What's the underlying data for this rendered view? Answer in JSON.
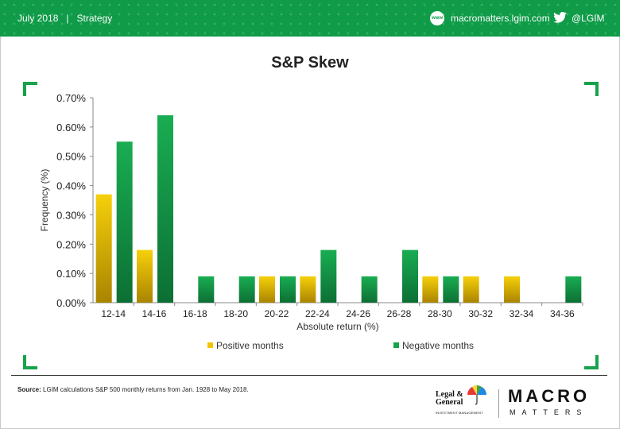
{
  "header": {
    "date": "July 2018",
    "separator": "|",
    "section": "Strategy",
    "web_icon_text": "www",
    "website": "macromatters.lgim.com",
    "twitter": "@LGIM"
  },
  "chart_data": {
    "type": "bar",
    "title": "S&P Skew",
    "xlabel": "Absolute return (%)",
    "ylabel": "Frequency (%)",
    "categories": [
      "12-14",
      "14-16",
      "16-18",
      "18-20",
      "20-22",
      "22-24",
      "24-26",
      "26-28",
      "28-30",
      "30-32",
      "32-34",
      "34-36"
    ],
    "series": [
      {
        "name": "Positive months",
        "color": "#f2c500",
        "values": [
          0.37,
          0.18,
          0,
          0,
          0.09,
          0.09,
          0,
          0,
          0.09,
          0.09,
          0.09,
          0
        ]
      },
      {
        "name": "Negative months",
        "color": "#16a34a",
        "values": [
          0.55,
          0.64,
          0.09,
          0.09,
          0.09,
          0.18,
          0.09,
          0.18,
          0.09,
          0,
          0,
          0.09
        ]
      }
    ],
    "ylim": [
      0,
      0.7
    ],
    "yticks": [
      "0.00%",
      "0.10%",
      "0.20%",
      "0.30%",
      "0.40%",
      "0.50%",
      "0.60%",
      "0.70%"
    ],
    "grid": false,
    "legend": "bottom"
  },
  "footer": {
    "source_label": "Source:",
    "source_text": " LGIM  calculations S&P 500 monthly returns from Jan. 1928 to May 2018.",
    "lg_line1": "Legal &",
    "lg_line2": "General",
    "lg_sub": "INVESTMENT MANAGEMENT",
    "macro_line1": "MACRO",
    "macro_line2": "MATTERS"
  }
}
